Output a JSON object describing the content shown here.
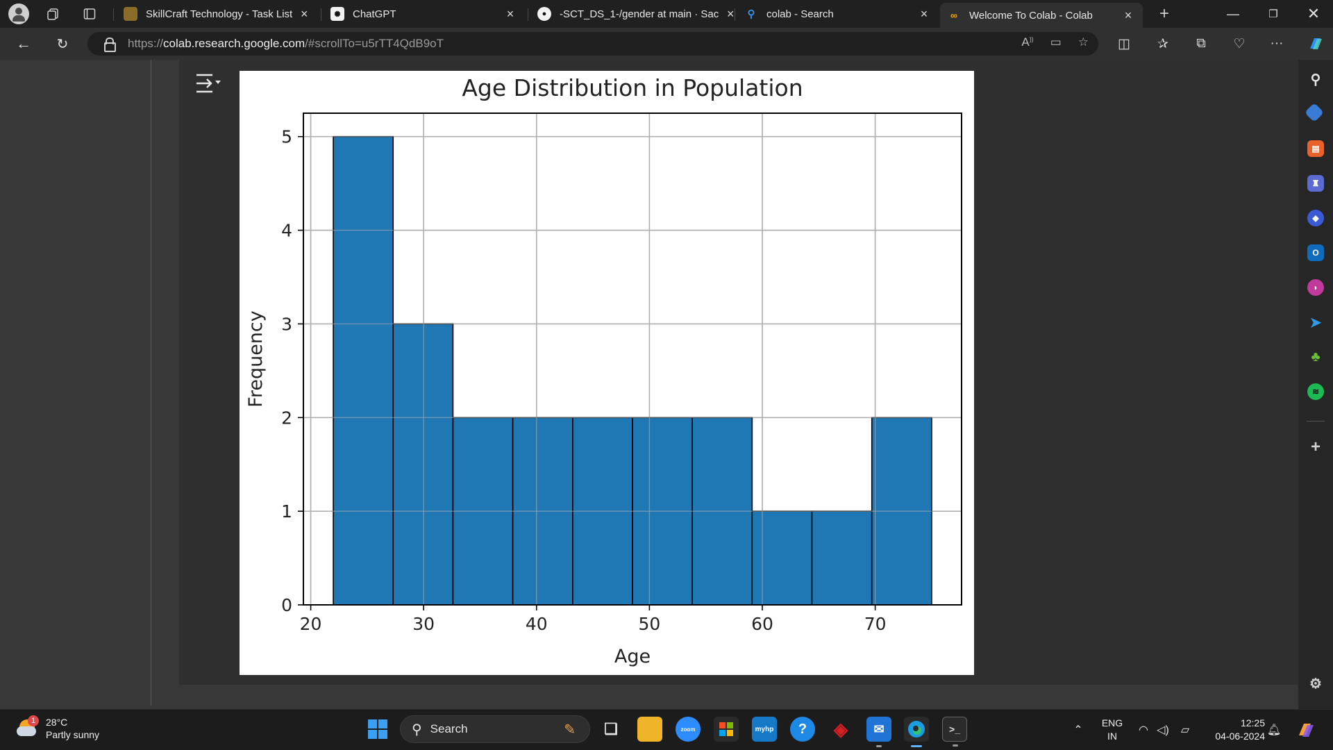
{
  "browser": {
    "tabs": [
      {
        "title": "SkillCraft Technology - Task List",
        "favicon": "skillcraft-icon"
      },
      {
        "title": "ChatGPT",
        "favicon": "chatgpt-icon"
      },
      {
        "title": "-SCT_DS_1-/gender at main · Sac",
        "favicon": "github-icon"
      },
      {
        "title": "colab - Search",
        "favicon": "bing-search-icon"
      },
      {
        "title": "Welcome To Colab - Colab",
        "favicon": "colab-icon",
        "active": true
      }
    ],
    "url": {
      "protocol": "https://",
      "host": "colab.research.google.com",
      "path": "/#scrollTo=u5rTT4QdB9oT"
    }
  },
  "chart_data": {
    "type": "bar",
    "title": "Age Distribution in Population",
    "xlabel": "Age",
    "ylabel": "Frequency",
    "bins": [
      {
        "start": 22,
        "end": 27.3,
        "count": 5
      },
      {
        "start": 27.3,
        "end": 32.6,
        "count": 3
      },
      {
        "start": 32.6,
        "end": 37.9,
        "count": 2
      },
      {
        "start": 37.9,
        "end": 43.2,
        "count": 2
      },
      {
        "start": 43.2,
        "end": 48.5,
        "count": 2
      },
      {
        "start": 48.5,
        "end": 53.8,
        "count": 2
      },
      {
        "start": 53.8,
        "end": 59.1,
        "count": 2
      },
      {
        "start": 59.1,
        "end": 64.4,
        "count": 1
      },
      {
        "start": 64.4,
        "end": 69.7,
        "count": 1
      },
      {
        "start": 69.7,
        "end": 75,
        "count": 2
      }
    ],
    "xlim": [
      19.35,
      77.65
    ],
    "ylim": [
      0,
      5.25
    ],
    "xticks": [
      20,
      30,
      40,
      50,
      60,
      70
    ],
    "yticks": [
      0,
      1,
      2,
      3,
      4,
      5
    ],
    "grid": true,
    "bar_color": "#1f77b4",
    "edge_color": "#000000"
  },
  "taskbar": {
    "weather": {
      "temp": "28°C",
      "condition": "Partly sunny",
      "badge": "1"
    },
    "search_placeholder": "Search",
    "language": {
      "line1": "ENG",
      "line2": "IN"
    },
    "clock": {
      "time": "12:25",
      "date": "04-06-2024"
    }
  }
}
